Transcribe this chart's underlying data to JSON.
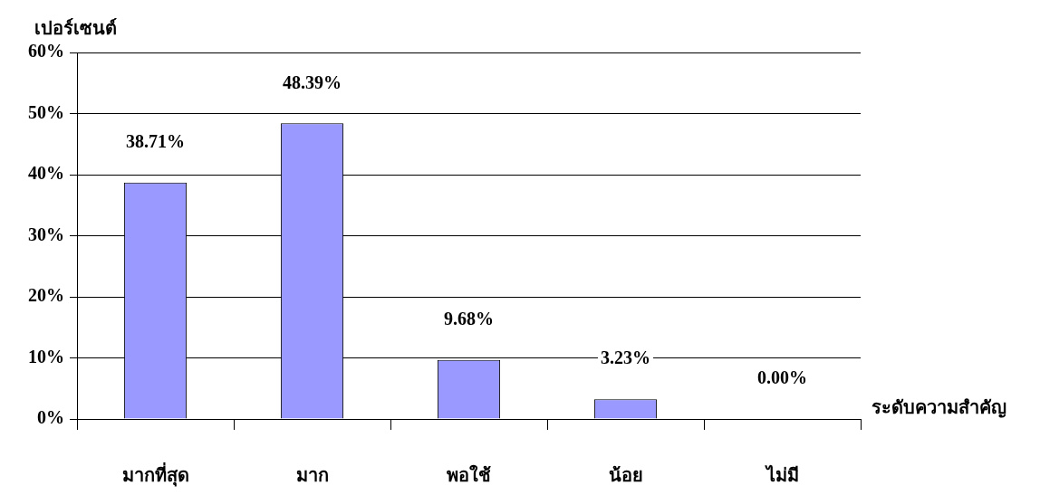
{
  "chart_data": {
    "type": "bar",
    "xlabel": "ระดับความสำคัญ",
    "ylabel": "เปอร์เซนต์",
    "categories": [
      "มากที่สุด",
      "มาก",
      "พอใช้",
      "น้อย",
      "ไม่มี"
    ],
    "values": [
      38.71,
      48.39,
      9.68,
      3.23,
      0
    ],
    "value_labels": [
      "38.71%",
      "48.39%",
      "9.68%",
      "3.23%",
      "0.00%"
    ],
    "color": "#9999ff",
    "ylim": [
      0,
      60
    ],
    "yticks": [
      {
        "value": 0,
        "label": "0%"
      },
      {
        "value": 10,
        "label": "10%"
      },
      {
        "value": 20,
        "label": "20%"
      },
      {
        "value": 30,
        "label": "30%"
      },
      {
        "value": 40,
        "label": "40%"
      },
      {
        "value": 50,
        "label": "50%"
      },
      {
        "value": 60,
        "label": "60%"
      }
    ],
    "grid": "y",
    "legend": false
  }
}
